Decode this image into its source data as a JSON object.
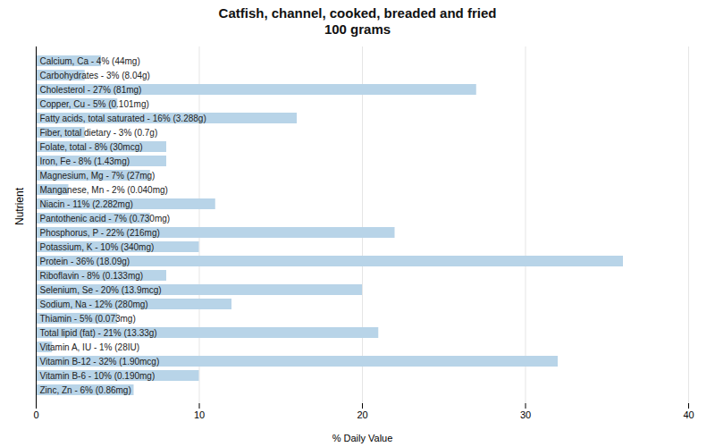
{
  "chart_data": {
    "type": "bar",
    "orientation": "horizontal",
    "title": "Catfish, channel, cooked, breaded and fried\n100 grams",
    "xlabel": "% Daily Value",
    "ylabel": "Nutrient",
    "categories": [
      "Calcium, Ca - 4% (44mg)",
      "Carbohydrates - 3% (8.04g)",
      "Cholesterol - 27% (81mg)",
      "Copper, Cu - 5% (0.101mg)",
      "Fatty acids, total saturated - 16% (3.288g)",
      "Fiber, total dietary - 3% (0.7g)",
      "Folate, total - 8% (30mcg)",
      "Iron, Fe - 8% (1.43mg)",
      "Magnesium, Mg - 7% (27mg)",
      "Manganese, Mn - 2% (0.040mg)",
      "Niacin - 11% (2.282mg)",
      "Pantothenic acid - 7% (0.730mg)",
      "Phosphorus, P - 22% (216mg)",
      "Potassium, K - 10% (340mg)",
      "Protein - 36% (18.09g)",
      "Riboflavin - 8% (0.133mg)",
      "Selenium, Se - 20% (13.9mcg)",
      "Sodium, Na - 12% (280mg)",
      "Thiamin - 5% (0.073mg)",
      "Total lipid (fat) - 21% (13.33g)",
      "Vitamin A, IU - 1% (28IU)",
      "Vitamin B-12 - 32% (1.90mcg)",
      "Vitamin B-6 - 10% (0.190mg)",
      "Zinc, Zn - 6% (0.86mg)"
    ],
    "values": [
      4,
      3,
      27,
      5,
      16,
      3,
      8,
      8,
      7,
      2,
      11,
      7,
      22,
      10,
      36,
      8,
      20,
      12,
      5,
      21,
      1,
      32,
      10,
      6
    ],
    "color": "#b8d4e8",
    "xlim": [
      0,
      40
    ],
    "xticks": [
      0,
      10,
      20,
      30,
      40
    ],
    "grid": true,
    "tick_labels": "x"
  }
}
